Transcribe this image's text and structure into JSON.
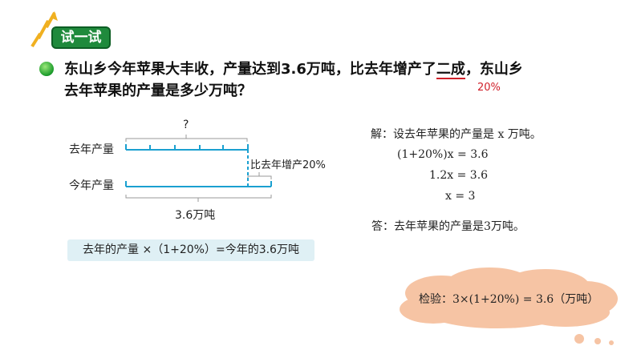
{
  "badge": "试一试",
  "question": {
    "line1_a": "东山乡今年苹果大丰收，产量达到3.6万吨，比去年增产了",
    "highlight": "二成",
    "line1_b": "，东山乡",
    "line2": "去年苹果的产量是多少万吨？",
    "annotation": "20%"
  },
  "diagram": {
    "last_year": "去年产量",
    "this_year": "今年产量",
    "question_mark": "?",
    "increase": "比去年增产20%",
    "total": "3.6万吨"
  },
  "formula": "去年的产量 ×（1+20%）=今年的3.6万吨",
  "solution": {
    "let": "解：设去年苹果的产量是 x 万吨。",
    "eq1": "(1+20%)x = 3.6",
    "eq2": "1.2x = 3.6",
    "eq3": "x = 3",
    "answer": "答：去年苹果的产量是3万吨。"
  },
  "check": "检验：3×(1+20%) = 3.6（万吨）",
  "colors": {
    "badge": "#1f8a3c",
    "accent_red": "#d0202a",
    "bar": "#1aa0d0",
    "cloud": "#f6c4a4",
    "formula_bg": "#dff0f5"
  }
}
